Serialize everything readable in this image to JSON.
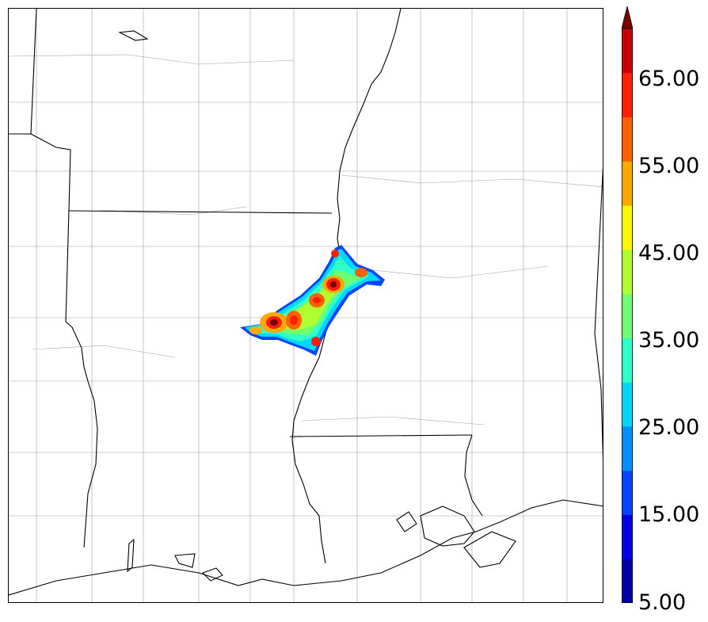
{
  "colorbar": {
    "labels": [
      "5.00",
      "15.00",
      "25.00",
      "35.00",
      "45.00",
      "55.00",
      "65.00"
    ],
    "colors": [
      "#0000a8",
      "#0000e6",
      "#0044ff",
      "#0090ff",
      "#00d8ff",
      "#30ffc8",
      "#70ff70",
      "#b0ff30",
      "#f8f800",
      "#ffa800",
      "#ff6000",
      "#ff2000",
      "#c80000",
      "#7a0000"
    ],
    "extend": "max"
  },
  "map": {
    "boundary_color": "#000000",
    "county_color": "#9a9a9a"
  }
}
